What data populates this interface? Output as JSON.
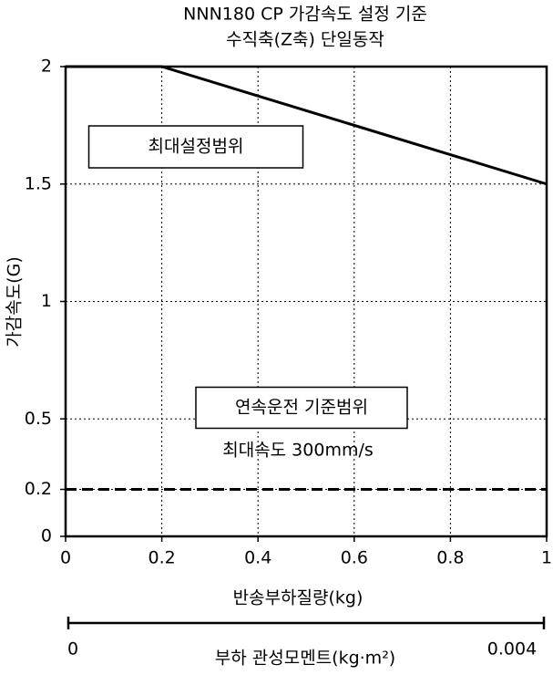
{
  "chart_data": {
    "type": "line",
    "title": "NNN180 CP 가감속도 설정 기준",
    "subtitle": "수직축(Z축) 단일동작",
    "xlabel": "반송부하질량(kg)",
    "ylabel": "가감속도(G)",
    "xlim": [
      0,
      1
    ],
    "xticks": [
      0,
      0.2,
      0.4,
      0.6,
      0.8,
      1
    ],
    "ylim": [
      0,
      2
    ],
    "yticks": [
      0,
      0.2,
      0.5,
      1,
      1.5,
      2
    ],
    "grid": true,
    "x2label": "부하 관성모멘트(kg·m²)",
    "x2lim": [
      0,
      0.004
    ],
    "x2ticks": [
      0,
      0.004
    ],
    "series": [
      {
        "color": "#000000",
        "linestyle": "solid",
        "x": [
          0,
          0.2,
          1
        ],
        "values": [
          2,
          2,
          1.5
        ]
      },
      {
        "color": "#000000",
        "linestyle": "dashed",
        "x": [
          0,
          1
        ],
        "values": [
          0.2,
          0.2
        ]
      }
    ],
    "annotations": [
      {
        "text": "최대설정범위",
        "boxed": true
      },
      {
        "text": "연속운전 기준범위",
        "boxed": true
      },
      {
        "text": "최대속도 300mm/s",
        "boxed": false
      }
    ]
  }
}
